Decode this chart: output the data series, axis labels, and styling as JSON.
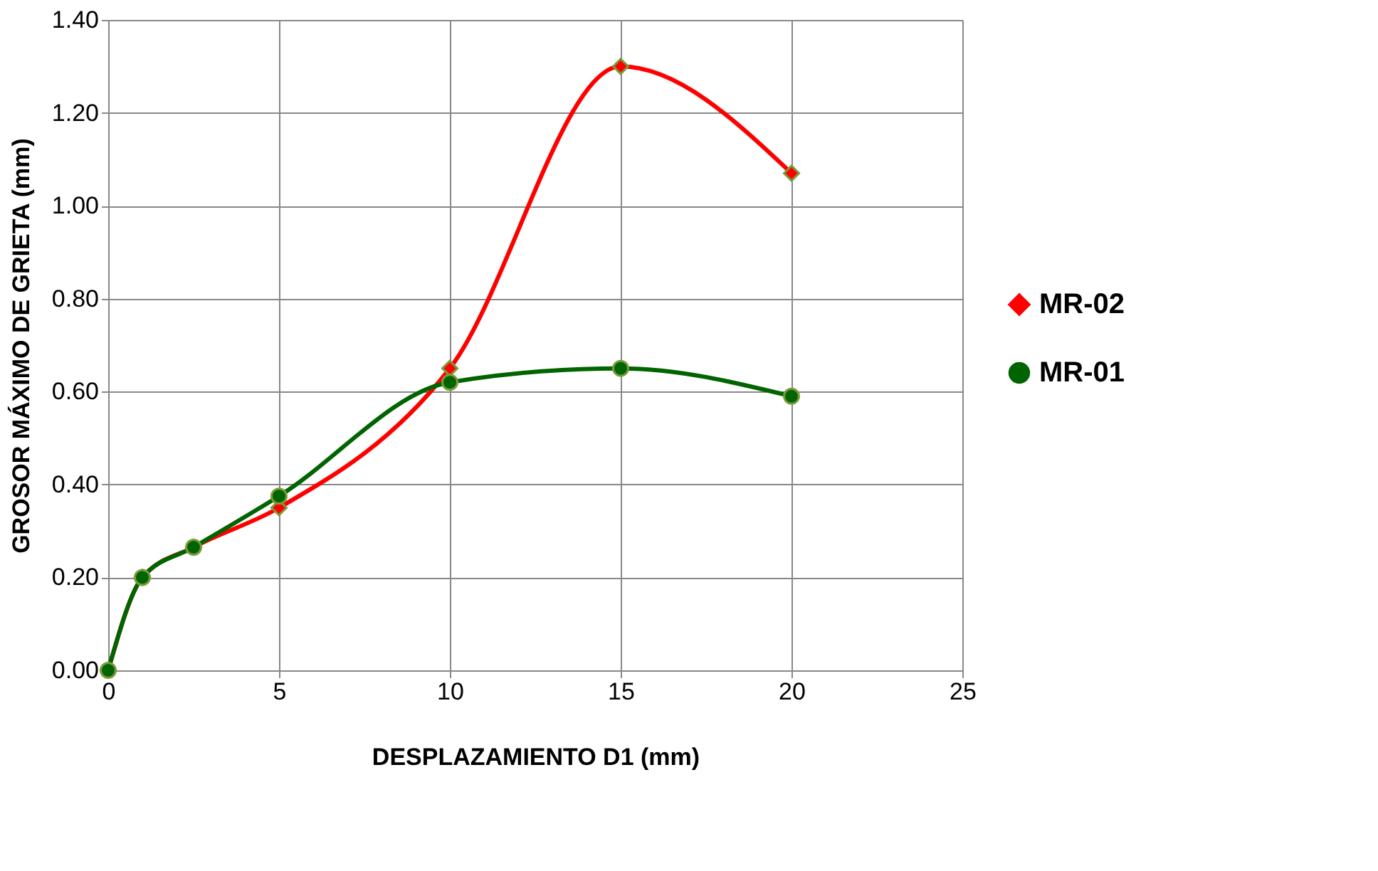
{
  "chart_data": {
    "type": "line",
    "xlabel": "DESPLAZAMIENTO D1 (mm)",
    "ylabel": "GROSOR MÁXIMO DE GRIETA (mm)",
    "xlim": [
      0,
      25
    ],
    "xticks": [
      0,
      5,
      10,
      15,
      20,
      25
    ],
    "ylim": [
      0,
      1.4
    ],
    "yticks": [
      {
        "value": 0,
        "label": "0.00"
      },
      {
        "value": 0.2,
        "label": "0.20"
      },
      {
        "value": 0.4,
        "label": "0.40"
      },
      {
        "value": 0.6,
        "label": "0.60"
      },
      {
        "value": 0.8,
        "label": "0.80"
      },
      {
        "value": 1.0,
        "label": "1.00"
      },
      {
        "value": 1.2,
        "label": "1.20"
      },
      {
        "value": 1.4,
        "label": "1.40"
      }
    ],
    "grid": true,
    "legend": "right",
    "line_style": "solid",
    "series": [
      {
        "name": "MR-02",
        "color": "#ff0000",
        "marker": "diamond",
        "x": [
          0,
          1,
          2.5,
          5,
          10,
          15,
          20
        ],
        "values": [
          0,
          0.2,
          0.265,
          0.35,
          0.65,
          1.3,
          1.07
        ]
      },
      {
        "name": "MR-01",
        "color": "#006400",
        "marker": "circle",
        "x": [
          0,
          1,
          2.5,
          5,
          10,
          15,
          20
        ],
        "values": [
          0,
          0.2,
          0.265,
          0.375,
          0.62,
          0.65,
          0.59
        ]
      }
    ]
  }
}
